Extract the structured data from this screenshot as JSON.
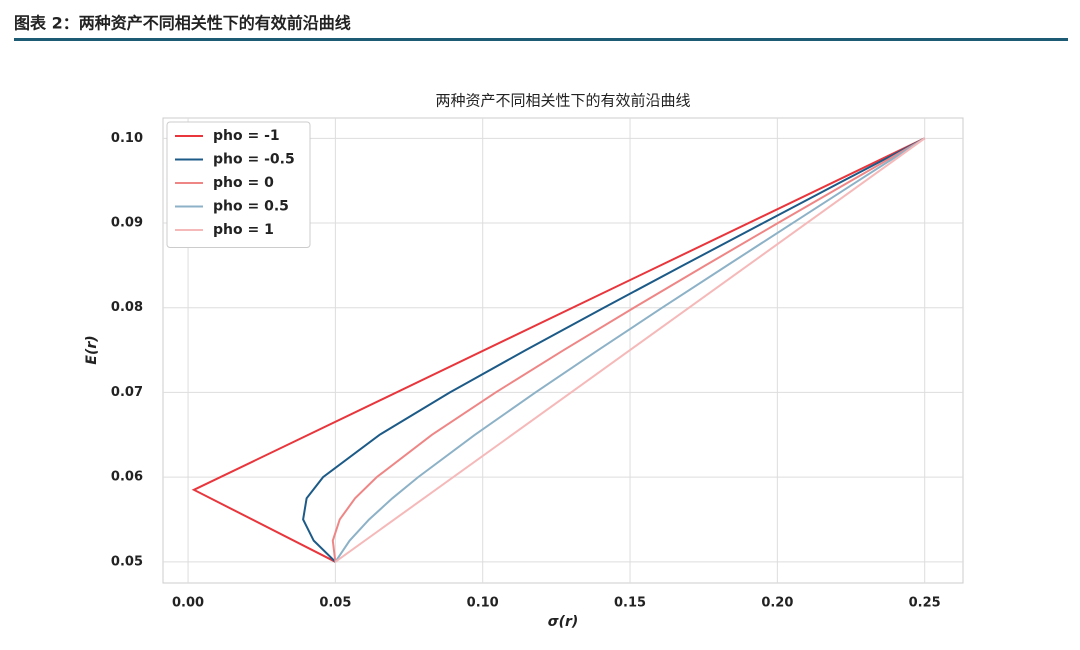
{
  "header": {
    "title": "图表 2：两种资产不同相关性下的有效前沿曲线"
  },
  "chart_data": {
    "type": "line",
    "title": "两种资产不同相关性下的有效前沿曲线",
    "x_label": "σ(r)",
    "y_label": "E(r)",
    "xlim": [
      -0.0085,
      0.263
    ],
    "ylim": [
      0.0475,
      0.1024
    ],
    "xticks": [
      {
        "value": 0,
        "label": "0.00"
      },
      0.05,
      {
        "value": 0.1,
        "label": "0.10"
      },
      0.15,
      {
        "value": 0.2,
        "label": "0.20"
      },
      0.25
    ],
    "yticks": [
      0.05,
      0.06,
      0.07,
      0.08,
      0.09,
      {
        "value": 0.1,
        "label": "0.10"
      }
    ],
    "grid": true,
    "legend": "upper-left",
    "series": [
      {
        "name": "pho = -1",
        "color": "#e8363c",
        "x": [
          0.05,
          0.002,
          0.25
        ],
        "values": [
          0.05,
          0.0585,
          0.1
        ]
      },
      {
        "name": "pho = -0.5",
        "color": "#1c5a87",
        "x": [
          0.05,
          0.04265,
          0.03905,
          0.04024,
          0.04583,
          0.065,
          0.08888,
          0.1146,
          0.1411,
          0.168,
          0.1952,
          0.2225,
          0.25
        ],
        "values": [
          0.05,
          0.0525,
          0.055,
          0.0575,
          0.06,
          0.065,
          0.07,
          0.075,
          0.08,
          0.085,
          0.09,
          0.095,
          0.1
        ]
      },
      {
        "name": "pho = 0",
        "color": "#ef8686",
        "x": [
          0.05,
          0.04912,
          0.05148,
          0.05668,
          0.06403,
          0.08276,
          0.1044,
          0.1275,
          0.1513,
          0.1756,
          0.2002,
          0.2251,
          0.25
        ],
        "values": [
          0.05,
          0.0525,
          0.055,
          0.0575,
          0.06,
          0.065,
          0.07,
          0.075,
          0.08,
          0.085,
          0.09,
          0.095,
          0.1
        ]
      },
      {
        "name": "pho = 0.5",
        "color": "#8db2c7",
        "x": [
          0.05,
          0.05483,
          0.06144,
          0.06933,
          0.0781,
          0.09734,
          0.1179,
          0.1392,
          0.1609,
          0.183,
          0.2052,
          0.2275,
          0.25
        ],
        "values": [
          0.05,
          0.0525,
          0.055,
          0.0575,
          0.06,
          0.065,
          0.07,
          0.075,
          0.08,
          0.085,
          0.09,
          0.095,
          0.1
        ]
      },
      {
        "name": "pho = 1",
        "color": "#f6b9b9",
        "x": [
          0.05,
          0.25
        ],
        "values": [
          0.05,
          0.1
        ]
      }
    ]
  }
}
